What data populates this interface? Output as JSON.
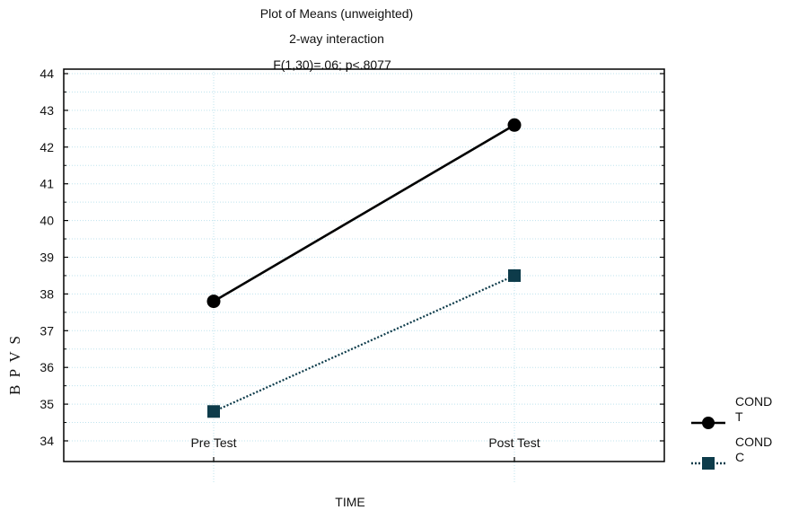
{
  "chart_data": {
    "type": "line",
    "title": "Plot of Means (unweighted)",
    "subtitle": "2-way interaction",
    "stat_line": "F(1,30)=.06; p<.8077",
    "xlabel": "TIME",
    "ylabel": "B P V S",
    "categories": [
      "Pre Test",
      "Post Test"
    ],
    "ylim": [
      34,
      44
    ],
    "yticks": [
      34,
      35,
      36,
      37,
      38,
      39,
      40,
      41,
      42,
      43,
      44
    ],
    "grid": true,
    "legend_position": "right-bottom",
    "series": [
      {
        "group": "COND",
        "name": "T",
        "values": [
          37.8,
          42.6
        ],
        "marker": "circle",
        "line": "solid",
        "color": "#000000"
      },
      {
        "group": "COND",
        "name": "C",
        "values": [
          34.8,
          38.5
        ],
        "marker": "square",
        "line": "dotted",
        "color": "#0d3b4a"
      }
    ]
  },
  "colors": {
    "grid": "#bfe3ee",
    "axis": "#000000"
  }
}
